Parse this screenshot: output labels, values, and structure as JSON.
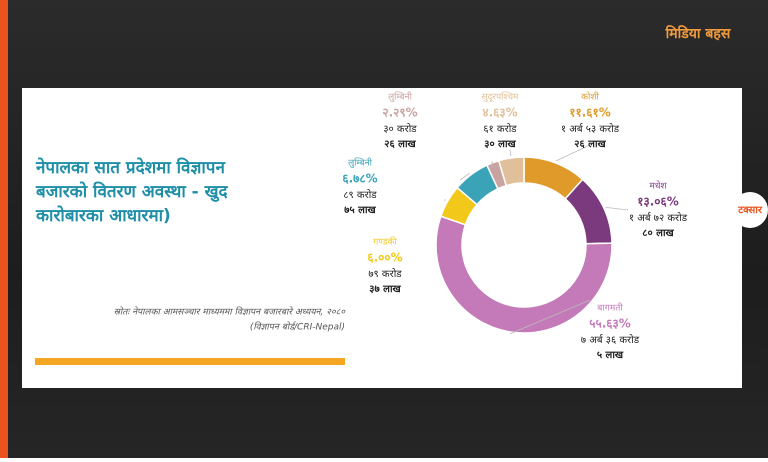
{
  "brand": "मिडिया बहस",
  "logo": "टक्सार",
  "chart_data": {
    "type": "pie",
    "title": [
      "नेपालका सात प्रदेशमा विज्ञापन",
      "बजारको वितरण अवस्था - खुद",
      "कारोबारका आधारमा)"
    ],
    "source": [
      "स्रोतः नेपालका आमसञ्चार माध्यममा विज्ञापन बजारबारे अध्ययन, २०८०",
      "(विज्ञापन बोर्ड/CRI-Nepal)"
    ],
    "categories": [
      "कोशी",
      "मधेश",
      "बागमती",
      "गण्डकी",
      "लुम्बिनी",
      "लुम्बिनी",
      "सुदूरपश्चिम"
    ],
    "values": [
      11.61,
      13.06,
      55.63,
      6,
      6.78,
      2.29,
      4.63
    ],
    "value_labels": [
      "११.६१%",
      "१३.०६%",
      "५५.६३%",
      "६.००%",
      "६.७८%",
      "२.२९%",
      "४.६३%"
    ],
    "amounts": [
      [
        "१ अर्ब ५३ करोड",
        "२६ लाख"
      ],
      [
        "१ अर्ब ७२ करोड",
        "८० लाख"
      ],
      [
        "७ अर्ब ३६ करोड",
        "५ लाख"
      ],
      [
        "७९ करोड",
        "३७ लाख"
      ],
      [
        "८९ करोड",
        "७५ लाख"
      ],
      [
        "३० करोड",
        "२६ लाख"
      ],
      [
        "६१ करोड",
        "३० लाख"
      ]
    ],
    "colors": [
      "#e09a2a",
      "#7b3a7e",
      "#c47ab8",
      "#f2c81a",
      "#3aa3b8",
      "#c9a3a0",
      "#e0c09a"
    ]
  }
}
